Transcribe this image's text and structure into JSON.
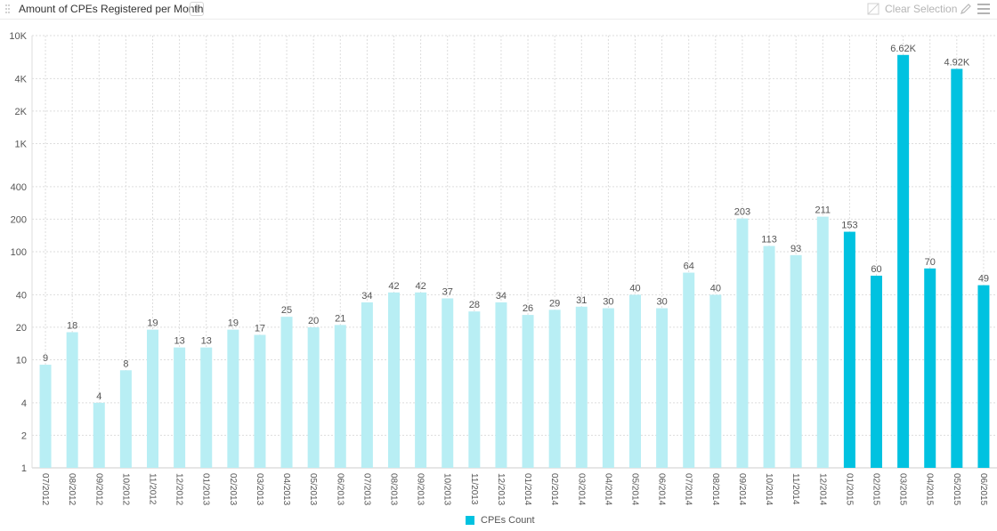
{
  "header": {
    "title": "Amount of CPEs Registered per Month",
    "info_label": "i",
    "clear_label": "Clear Selection"
  },
  "colors": {
    "bar_light": "#b8eef4",
    "bar_dark": "#00c2e0",
    "grid": "#dddddd",
    "axis": "#cccccc",
    "text": "#555555"
  },
  "chart_data": {
    "type": "bar",
    "y_scale": "log",
    "ylim": [
      1,
      10000
    ],
    "grid": true,
    "y_ticks": [
      1,
      2,
      4,
      10,
      20,
      40,
      100,
      200,
      400,
      1000,
      2000,
      4000,
      10000
    ],
    "y_tick_labels": [
      "1",
      "2",
      "4",
      "10",
      "20",
      "40",
      "100",
      "200",
      "400",
      "1K",
      "2K",
      "4K",
      "10K"
    ],
    "categories": [
      "07/2012",
      "08/2012",
      "09/2012",
      "10/2012",
      "11/2012",
      "12/2012",
      "01/2013",
      "02/2013",
      "03/2013",
      "04/2013",
      "05/2013",
      "06/2013",
      "07/2013",
      "08/2013",
      "09/2013",
      "10/2013",
      "11/2013",
      "12/2013",
      "01/2014",
      "02/2014",
      "03/2014",
      "04/2014",
      "05/2014",
      "06/2014",
      "07/2014",
      "08/2014",
      "09/2014",
      "10/2014",
      "11/2014",
      "12/2014",
      "01/2015",
      "02/2015",
      "03/2015",
      "04/2015",
      "05/2015",
      "06/2015"
    ],
    "series": [
      {
        "name": "CPEs Count",
        "values": [
          9,
          18,
          4,
          8,
          19,
          13,
          13,
          19,
          17,
          25,
          20,
          21,
          34,
          42,
          42,
          37,
          28,
          34,
          26,
          29,
          31,
          30,
          40,
          30,
          64,
          40,
          203,
          113,
          93,
          211,
          153,
          60,
          6620,
          70,
          4920,
          49
        ],
        "labels": [
          "9",
          "18",
          "4",
          "8",
          "19",
          "13",
          "13",
          "19",
          "17",
          "25",
          "20",
          "21",
          "34",
          "42",
          "42",
          "37",
          "28",
          "34",
          "26",
          "29",
          "31",
          "30",
          "40",
          "30",
          "64",
          "40",
          "203",
          "113",
          "93",
          "211",
          "153",
          "60",
          "6.62K",
          "70",
          "4.92K",
          "49"
        ],
        "highlighted_from_index": 30
      }
    ],
    "legend": {
      "position": "bottom-center",
      "label": "CPEs Count"
    }
  }
}
